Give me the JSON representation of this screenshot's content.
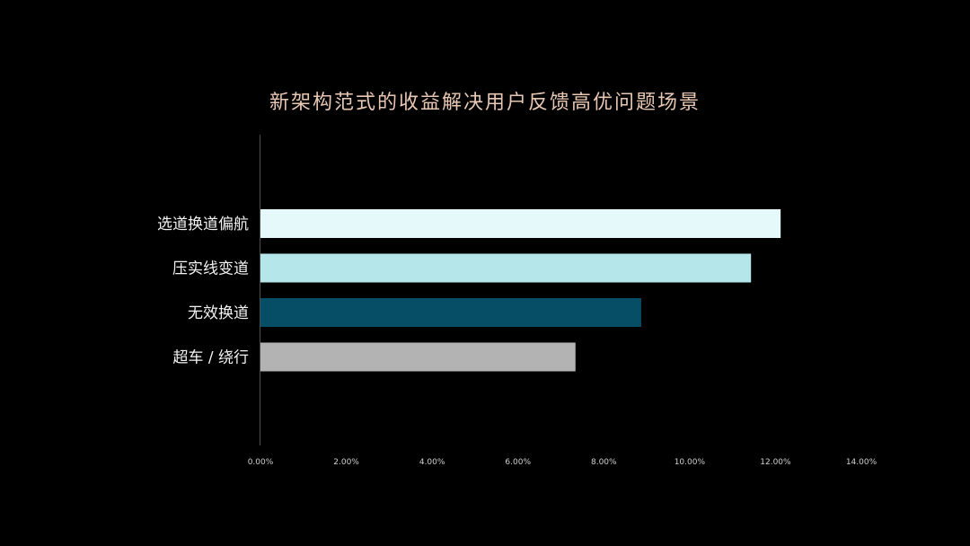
{
  "chart_data": {
    "type": "bar",
    "orientation": "horizontal",
    "title": "新架构范式的收益解决用户反馈高优问题场景",
    "categories": [
      "选道换道偏航",
      "压实线变道",
      "无效换道",
      "超车 / 绕行"
    ],
    "values": [
      0.1212,
      0.1143,
      0.0887,
      0.0734
    ],
    "colors": [
      "#e6f9fa",
      "#b5e6ea",
      "#054e66",
      "#b3b3b3"
    ],
    "xlim": [
      0,
      0.14
    ],
    "xticks": [
      "0.00%",
      "2.00%",
      "4.00%",
      "6.00%",
      "8.00%",
      "10.00%",
      "12.00%",
      "14.00%"
    ],
    "xtick_values": [
      0,
      0.02,
      0.04,
      0.06,
      0.08,
      0.1,
      0.12,
      0.14
    ],
    "grid": false,
    "legend": "none"
  }
}
